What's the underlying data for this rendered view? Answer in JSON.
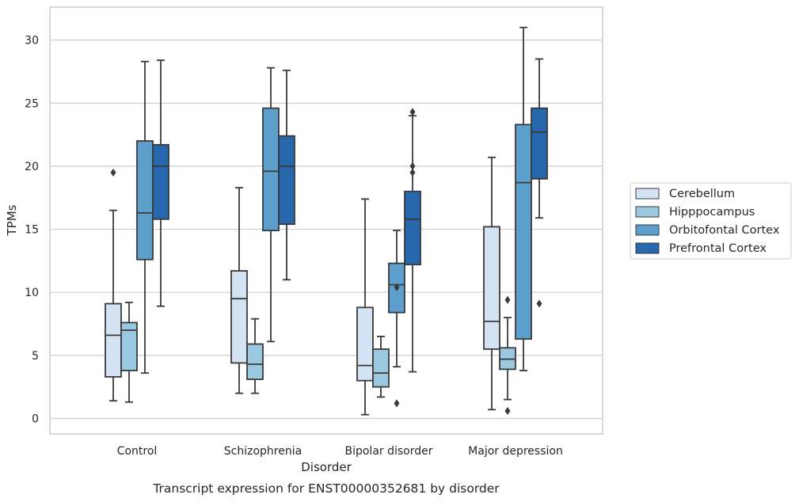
{
  "caption": "Transcript expression for ENST00000352681 by disorder",
  "chart_data": {
    "type": "box",
    "xlabel": "Disorder",
    "ylabel": "TPMs",
    "ylim": [
      -1.2,
      32.5
    ],
    "yticks": [
      0,
      5,
      10,
      15,
      20,
      25,
      30
    ],
    "categories": [
      "Control",
      "Schizophrenia",
      "Bipolar disorder",
      "Major depression"
    ],
    "grid": true,
    "legend_position": "right",
    "series": [
      {
        "name": "Cerebellum",
        "color": "#d4e3f3",
        "boxes": [
          {
            "whisker_low": 1.4,
            "q1": 3.3,
            "median": 6.6,
            "q3": 9.1,
            "whisker_high": 16.5,
            "outliers": [
              19.5
            ]
          },
          {
            "whisker_low": 2.0,
            "q1": 4.4,
            "median": 9.5,
            "q3": 11.7,
            "whisker_high": 18.3,
            "outliers": []
          },
          {
            "whisker_low": 0.3,
            "q1": 3.0,
            "median": 4.2,
            "q3": 8.8,
            "whisker_high": 17.4,
            "outliers": []
          },
          {
            "whisker_low": 0.7,
            "q1": 5.5,
            "median": 7.7,
            "q3": 15.2,
            "whisker_high": 20.7,
            "outliers": []
          }
        ]
      },
      {
        "name": "Hipppocampus",
        "color": "#9ac8e0",
        "boxes": [
          {
            "whisker_low": 1.3,
            "q1": 3.8,
            "median": 7.0,
            "q3": 7.6,
            "whisker_high": 9.2,
            "outliers": []
          },
          {
            "whisker_low": 2.0,
            "q1": 3.1,
            "median": 4.3,
            "q3": 5.9,
            "whisker_high": 7.9,
            "outliers": []
          },
          {
            "whisker_low": 1.7,
            "q1": 2.5,
            "median": 3.6,
            "q3": 5.5,
            "whisker_high": 6.5,
            "outliers": []
          },
          {
            "whisker_low": 1.5,
            "q1": 3.9,
            "median": 4.7,
            "q3": 5.6,
            "whisker_high": 8.0,
            "outliers": [
              9.4,
              0.6
            ]
          }
        ]
      },
      {
        "name": "Orbitofontal Cortex",
        "color": "#5da0cd",
        "boxes": [
          {
            "whisker_low": 3.6,
            "q1": 12.6,
            "median": 16.3,
            "q3": 22.0,
            "whisker_high": 28.3,
            "outliers": []
          },
          {
            "whisker_low": 6.1,
            "q1": 14.9,
            "median": 19.6,
            "q3": 24.6,
            "whisker_high": 27.8,
            "outliers": []
          },
          {
            "whisker_low": 4.1,
            "q1": 8.4,
            "median": 10.6,
            "q3": 12.3,
            "whisker_high": 14.9,
            "outliers": [
              10.4,
              1.2
            ]
          },
          {
            "whisker_low": 3.8,
            "q1": 6.3,
            "median": 18.7,
            "q3": 23.3,
            "whisker_high": 31.0,
            "outliers": []
          }
        ]
      },
      {
        "name": "Prefrontal Cortex",
        "color": "#2767ad",
        "boxes": [
          {
            "whisker_low": 8.9,
            "q1": 15.8,
            "median": 20.0,
            "q3": 21.7,
            "whisker_high": 28.4,
            "outliers": []
          },
          {
            "whisker_low": 11.0,
            "q1": 15.4,
            "median": 20.0,
            "q3": 22.4,
            "whisker_high": 27.6,
            "outliers": []
          },
          {
            "whisker_low": 3.7,
            "q1": 12.2,
            "median": 15.8,
            "q3": 18.0,
            "whisker_high": 24.0,
            "outliers": [
              24.3,
              20.0,
              19.5
            ]
          },
          {
            "whisker_low": 15.9,
            "q1": 19.0,
            "median": 22.7,
            "q3": 24.6,
            "whisker_high": 28.5,
            "outliers": [
              9.1
            ]
          }
        ]
      }
    ]
  }
}
